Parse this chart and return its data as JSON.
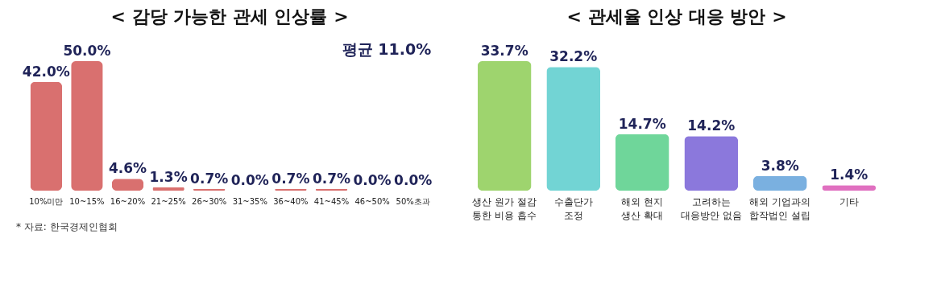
{
  "chart_data": [
    {
      "type": "bar",
      "title": "< 감당 가능한 관세 인상률 >",
      "categories": [
        "10%미만",
        "10~15%",
        "16~20%",
        "21~25%",
        "26~30%",
        "31~35%",
        "36~40%",
        "41~45%",
        "46~50%",
        "50%초과"
      ],
      "values": [
        42.0,
        50.0,
        4.6,
        1.3,
        0.7,
        0.0,
        0.7,
        0.7,
        0.0,
        0.0
      ],
      "value_labels": [
        "42.0%",
        "50.0%",
        "4.6%",
        "1.3%",
        "0.7%",
        "0.0%",
        "0.7%",
        "0.7%",
        "0.0%",
        "0.0%"
      ],
      "color": "#d9706f",
      "annotations": [
        "평균 11.0%",
        "* 자료: 한국경제인협회"
      ]
    },
    {
      "type": "bar",
      "title": "< 관세율 인상 대응 방안 >",
      "categories": [
        "생산 원가 절감\n통한 비용 흡수",
        "수출단가\n조정",
        "해외 현지\n생산 확대",
        "고려하는\n대응방안 없음",
        "해외 기업과의\n합작법인 설립",
        "기타"
      ],
      "values": [
        33.7,
        32.2,
        14.7,
        14.2,
        3.8,
        1.4
      ],
      "value_labels": [
        "33.7%",
        "32.2%",
        "14.7%",
        "14.2%",
        "3.8%",
        "1.4%"
      ],
      "colors": [
        "#9ed46e",
        "#72d4d4",
        "#6fd69a",
        "#8b78dc",
        "#7ab0e0",
        "#e070c0"
      ]
    }
  ]
}
